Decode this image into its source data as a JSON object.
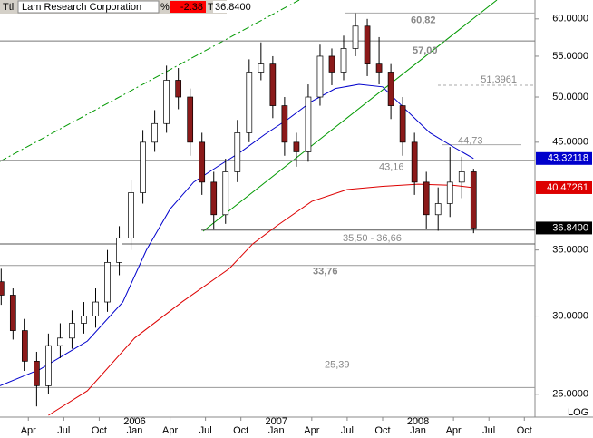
{
  "chart_data": {
    "type": "candlestick",
    "log_scale": true,
    "header": {
      "field": "Ttl",
      "name": "Lam Research Corporation",
      "pct_label": "%",
      "change": "-2.38",
      "price_label": "T",
      "price": "36.8400"
    },
    "scale_label": "LOG",
    "xlim": [
      0.6,
      45.9
    ],
    "xticks": [
      {
        "value": 3,
        "label": "Apr"
      },
      {
        "value": 6,
        "label": "Jul"
      },
      {
        "value": 9,
        "label": "Oct"
      },
      {
        "value": 12,
        "label": "Jan"
      },
      {
        "value": 15,
        "label": "Apr"
      },
      {
        "value": 18,
        "label": "Jul"
      },
      {
        "value": 21,
        "label": "Oct"
      },
      {
        "value": 24,
        "label": "Jan"
      },
      {
        "value": 27,
        "label": "Apr"
      },
      {
        "value": 30,
        "label": "Jul"
      },
      {
        "value": 33,
        "label": "Oct"
      },
      {
        "value": 36,
        "label": "Jan"
      },
      {
        "value": 39,
        "label": "Apr"
      },
      {
        "value": 42,
        "label": "Jul"
      },
      {
        "value": 45,
        "label": "Oct"
      }
    ],
    "year_labels": [
      {
        "value": 12,
        "label": "2006"
      },
      {
        "value": 24,
        "label": "2007"
      },
      {
        "value": 36,
        "label": "2008"
      }
    ],
    "ylim": [
      23.7,
      62.7
    ],
    "yticks": [
      {
        "value": 25,
        "label": "25.0000"
      },
      {
        "value": 30,
        "label": "30.0000"
      },
      {
        "value": 35,
        "label": "35.0000"
      },
      {
        "value": 45,
        "label": "45.0000"
      },
      {
        "value": 50,
        "label": "50.0000"
      },
      {
        "value": 55,
        "label": "55.0000"
      },
      {
        "value": 60,
        "label": "60.0000"
      }
    ],
    "candles": {
      "up_color": "#ffffff",
      "down_color": "#8b1a1a",
      "x": [
        0.7,
        1.7,
        2.7,
        3.7,
        4.7,
        5.7,
        6.7,
        7.7,
        8.7,
        9.7,
        10.7,
        11.7,
        12.7,
        13.7,
        14.7,
        15.7,
        16.7,
        17.7,
        18.7,
        19.7,
        20.7,
        21.7,
        22.7,
        23.7,
        24.7,
        25.7,
        26.7,
        27.7,
        28.7,
        29.7,
        30.7,
        31.7,
        32.7,
        33.7,
        34.7,
        35.7,
        36.7,
        37.7,
        38.7,
        39.7,
        40.7
      ],
      "open": [
        32.5,
        31.5,
        29,
        27,
        25.5,
        28,
        28.5,
        29.5,
        30,
        31,
        34,
        36,
        40,
        45,
        47,
        52,
        50,
        45,
        41,
        38,
        42,
        46,
        53,
        54,
        49,
        45,
        44,
        50,
        55,
        53,
        56,
        59,
        54,
        53,
        49,
        45,
        41,
        38,
        39,
        41,
        42
      ],
      "high": [
        33.5,
        32,
        29.8,
        27.6,
        28.8,
        29.5,
        30.4,
        31,
        32,
        35,
        37,
        41.2,
        46.3,
        48.5,
        53.8,
        53.5,
        51,
        46,
        42,
        43.3,
        47.4,
        54.6,
        56.8,
        55,
        50,
        46,
        51.5,
        56.5,
        56,
        57.7,
        60.8,
        60,
        57.5,
        54,
        50,
        46,
        42,
        40.5,
        44.5,
        43.5,
        42.3
      ],
      "low": [
        30.8,
        28.4,
        26.4,
        24.3,
        25,
        27.2,
        27.8,
        28.8,
        29.2,
        30.3,
        33,
        35,
        39,
        44,
        46,
        48.6,
        43.6,
        39.8,
        36.7,
        37.2,
        41,
        45,
        52,
        47.6,
        43.6,
        42.5,
        43,
        49,
        51.4,
        52,
        55,
        52.5,
        51.5,
        47.5,
        43.6,
        39.8,
        36.8,
        36.6,
        37.8,
        39.5,
        36.4
      ],
      "close": [
        31.5,
        29,
        27,
        25.5,
        28,
        28.5,
        29.5,
        30,
        31,
        34,
        36,
        40,
        45,
        47,
        52,
        50,
        45,
        41,
        38,
        42,
        46,
        53,
        54,
        49,
        45,
        44,
        50,
        55,
        53,
        56,
        59,
        54,
        53,
        49,
        45,
        41,
        38,
        39,
        41,
        42,
        36.84
      ]
    },
    "series": [
      {
        "color": "#0000cc",
        "x": [
          0.6,
          4,
          8,
          11,
          13,
          15,
          17,
          19,
          21,
          23,
          25,
          27,
          29,
          31,
          33,
          35,
          37,
          39,
          40.7
        ],
        "values": [
          25.5,
          26.5,
          28.3,
          31,
          35,
          38.5,
          41,
          42.5,
          44,
          45.8,
          47.5,
          49.5,
          51,
          51.5,
          51.2,
          48.5,
          46,
          44.5,
          43.32
        ]
      },
      {
        "color": "#dd0000",
        "x": [
          4.7,
          8,
          12,
          16,
          20,
          22,
          24,
          27,
          30,
          33,
          36,
          39,
          40.7
        ],
        "values": [
          23.8,
          25.2,
          28.5,
          31,
          33.5,
          35.5,
          37,
          39.2,
          40.3,
          40.6,
          40.8,
          40.7,
          40.47
        ]
      }
    ],
    "levels": [
      {
        "value": 60.82,
        "label": "60,82"
      },
      {
        "value": 57.0,
        "label": "57,00"
      },
      {
        "value": 51.3961,
        "label": "51,3961"
      },
      {
        "value": 44.73,
        "label": "44,73"
      },
      {
        "value": 43.16,
        "label": "43,16"
      },
      {
        "value": 36.66
      },
      {
        "value": 35.5
      },
      {
        "value": 33.76,
        "label": "33,76"
      },
      {
        "value": 25.39,
        "label": "25,39"
      }
    ],
    "range_label": "35,50 - 36,66",
    "price_labels": [
      {
        "value": 43.32118,
        "label": "43.32118",
        "color": "#0000cc"
      },
      {
        "value": 40.47261,
        "label": "40.47261",
        "color": "#dd0000"
      },
      {
        "value": 36.84,
        "label": "36.8400",
        "color": "#000000"
      }
    ]
  }
}
